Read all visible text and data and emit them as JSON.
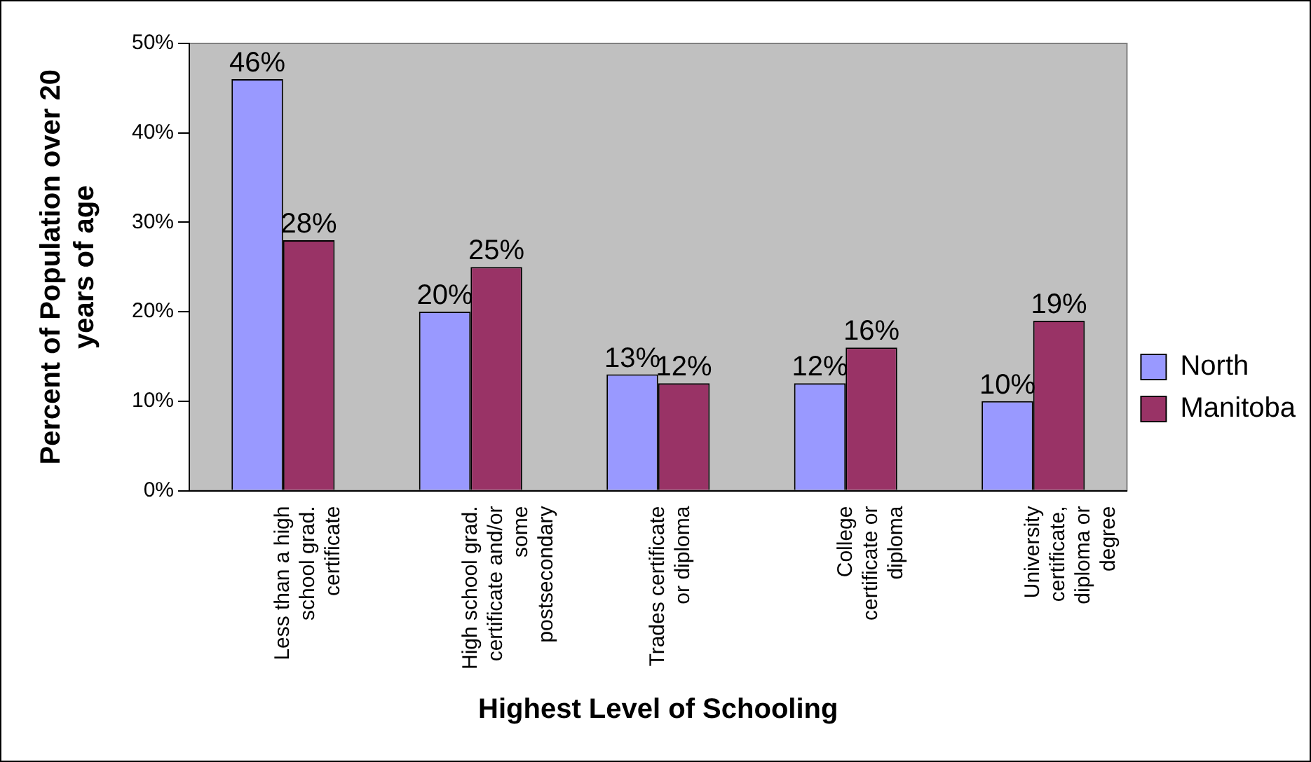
{
  "chart_data": {
    "type": "bar",
    "xlabel": "Highest Level of Schooling",
    "ylabel": "Percent of Population over 20 years of age",
    "categories": [
      "Less than a high school grad. certificate",
      "High school grad. certificate and/or some postsecondary",
      "Trades certificate or diploma",
      "College certificate or diploma",
      "University certificate, diploma or degree"
    ],
    "series": [
      {
        "name": "North",
        "color": "#9999ff",
        "values": [
          46,
          20,
          13,
          12,
          10
        ],
        "value_labels": [
          "46%",
          "20%",
          "13%",
          "12%",
          "10%"
        ]
      },
      {
        "name": "Manitoba",
        "color": "#993366",
        "values": [
          28,
          25,
          12,
          16,
          19
        ],
        "value_labels": [
          "28%",
          "25%",
          "12%",
          "16%",
          "19%"
        ]
      }
    ],
    "ylim": [
      0,
      50
    ],
    "yticks": [
      {
        "value": 0,
        "label": "0%"
      },
      {
        "value": 10,
        "label": "10%"
      },
      {
        "value": 20,
        "label": "20%"
      },
      {
        "value": 30,
        "label": "30%"
      },
      {
        "value": 40,
        "label": "40%"
      },
      {
        "value": 50,
        "label": "50%"
      }
    ],
    "grid": false,
    "legend": "right"
  }
}
